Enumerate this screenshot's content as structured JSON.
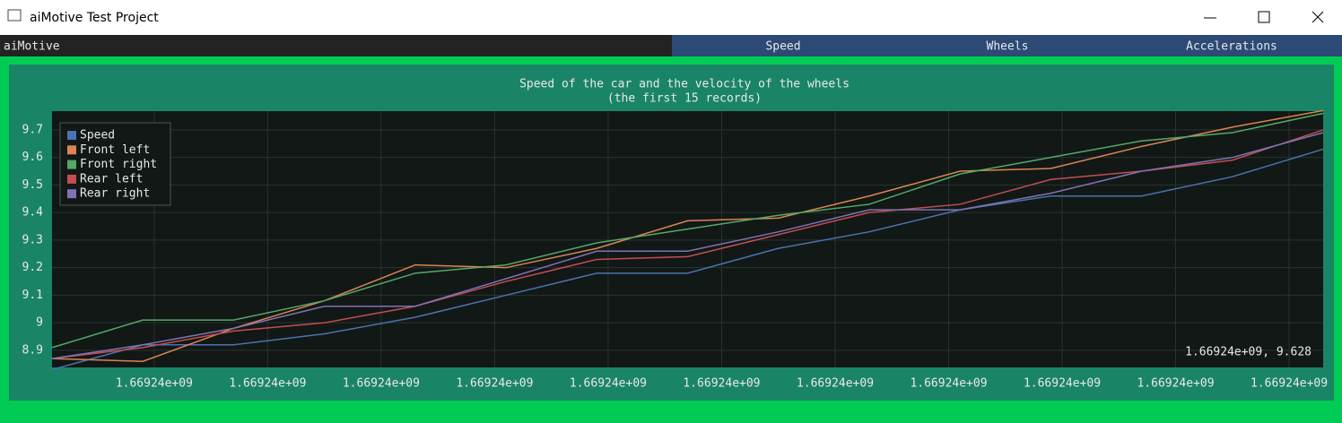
{
  "window": {
    "title": "aiMotive Test Project"
  },
  "menu": {
    "app": "aiMotive",
    "tabs": [
      "Speed",
      "Wheels",
      "Accelerations"
    ]
  },
  "chart_data": {
    "type": "line",
    "title": "Speed of the car and the velocity of the wheels",
    "subtitle": "(the first 15 records)",
    "x": [
      1669240000.1,
      1669240000.9,
      1669240001.7,
      1669240002.5,
      1669240003.3,
      1669240004.1,
      1669240004.9,
      1669240005.7,
      1669240006.5,
      1669240007.3,
      1669240008.1,
      1669240008.9,
      1669240009.7,
      1669240010.5,
      1669240011.3
    ],
    "series": [
      {
        "name": "Speed",
        "color": "#4c72b0",
        "values": [
          8.83,
          8.92,
          8.92,
          8.96,
          9.02,
          9.1,
          9.18,
          9.18,
          9.27,
          9.33,
          9.41,
          9.46,
          9.46,
          9.53,
          9.63
        ]
      },
      {
        "name": "Front left",
        "color": "#dd8452",
        "values": [
          8.87,
          8.86,
          8.98,
          9.08,
          9.21,
          9.2,
          9.27,
          9.37,
          9.38,
          9.46,
          9.55,
          9.56,
          9.64,
          9.71,
          9.77
        ]
      },
      {
        "name": "Front right",
        "color": "#55a868",
        "values": [
          8.91,
          9.01,
          9.01,
          9.08,
          9.18,
          9.21,
          9.29,
          9.34,
          9.39,
          9.43,
          9.54,
          9.6,
          9.66,
          9.69,
          9.76
        ]
      },
      {
        "name": "Rear left",
        "color": "#c44e52",
        "values": [
          8.87,
          8.91,
          8.97,
          9.0,
          9.06,
          9.15,
          9.23,
          9.24,
          9.32,
          9.4,
          9.43,
          9.52,
          9.55,
          9.59,
          9.7
        ]
      },
      {
        "name": "Rear right",
        "color": "#8172b3",
        "values": [
          8.87,
          8.92,
          8.98,
          9.06,
          9.06,
          9.16,
          9.26,
          9.26,
          9.33,
          9.41,
          9.41,
          9.47,
          9.55,
          9.6,
          9.69
        ]
      }
    ],
    "xlim": [
      1669240000.1,
      1669240011.3
    ],
    "xticks": [
      {
        "value": 1669240001,
        "label": "1.66924e+09"
      },
      {
        "value": 1669240002,
        "label": "1.66924e+09"
      },
      {
        "value": 1669240003,
        "label": "1.66924e+09"
      },
      {
        "value": 1669240004,
        "label": "1.66924e+09"
      },
      {
        "value": 1669240005,
        "label": "1.66924e+09"
      },
      {
        "value": 1669240006,
        "label": "1.66924e+09"
      },
      {
        "value": 1669240007,
        "label": "1.66924e+09"
      },
      {
        "value": 1669240008,
        "label": "1.66924e+09"
      },
      {
        "value": 1669240009,
        "label": "1.66924e+09"
      },
      {
        "value": 1669240010,
        "label": "1.66924e+09"
      },
      {
        "value": 1669240011,
        "label": "1.66924e+09"
      }
    ],
    "ylim": [
      8.838,
      9.768
    ],
    "yticks": [
      8.9,
      9,
      9.1,
      9.2,
      9.3,
      9.4,
      9.5,
      9.6,
      9.7
    ],
    "grid": true,
    "legend": "upper left",
    "readout": "1.66924e+09, 9.628"
  }
}
